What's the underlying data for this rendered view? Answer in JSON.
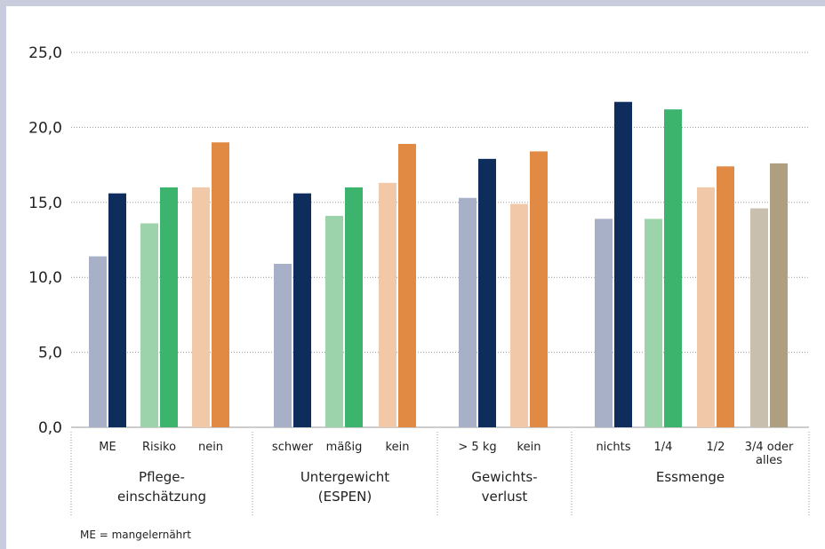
{
  "chart_data": {
    "type": "bar",
    "y_ticks": [
      "0,0",
      "5,0",
      "10,0",
      "15,0",
      "20,0",
      "25,0"
    ],
    "ylim": [
      0,
      25
    ],
    "grid": true,
    "groups": [
      {
        "label": [
          "Pflege-",
          "einschätzung"
        ],
        "categories": [
          {
            "label": [
              "ME"
            ],
            "values": [
              11.4,
              15.6
            ],
            "colors": [
              "#a8b0c8",
              "#0e2d5c"
            ]
          },
          {
            "label": [
              "Risiko"
            ],
            "values": [
              13.6,
              16.0
            ],
            "colors": [
              "#9dd3aa",
              "#3cb46e"
            ]
          },
          {
            "label": [
              "nein"
            ],
            "values": [
              16.0,
              19.0
            ],
            "colors": [
              "#f2c9a8",
              "#e08a44"
            ]
          }
        ]
      },
      {
        "label": [
          "Untergewicht",
          "(ESPEN)"
        ],
        "categories": [
          {
            "label": [
              "schwer"
            ],
            "values": [
              10.9,
              15.6
            ],
            "colors": [
              "#a8b0c8",
              "#0e2d5c"
            ]
          },
          {
            "label": [
              "mäßig"
            ],
            "values": [
              14.1,
              16.0
            ],
            "colors": [
              "#9dd3aa",
              "#3cb46e"
            ]
          },
          {
            "label": [
              "kein"
            ],
            "values": [
              16.3,
              18.9
            ],
            "colors": [
              "#f2c9a8",
              "#e08a44"
            ]
          }
        ]
      },
      {
        "label": [
          "Gewichts-",
          "verlust"
        ],
        "categories": [
          {
            "label": [
              "> 5 kg"
            ],
            "values": [
              15.3,
              17.9
            ],
            "colors": [
              "#a8b0c8",
              "#0e2d5c"
            ]
          },
          {
            "label": [
              "kein"
            ],
            "values": [
              14.9,
              18.4
            ],
            "colors": [
              "#f2c9a8",
              "#e08a44"
            ]
          }
        ]
      },
      {
        "label": [
          "Essmenge"
        ],
        "categories": [
          {
            "label": [
              "nichts"
            ],
            "values": [
              13.9,
              21.7
            ],
            "colors": [
              "#a8b0c8",
              "#0e2d5c"
            ]
          },
          {
            "label": [
              "1/4"
            ],
            "values": [
              13.9,
              21.2
            ],
            "colors": [
              "#9dd3aa",
              "#3cb46e"
            ]
          },
          {
            "label": [
              "1/2"
            ],
            "values": [
              16.0,
              17.4
            ],
            "colors": [
              "#f2c9a8",
              "#e08a44"
            ]
          },
          {
            "label": [
              "3/4 oder",
              "alles"
            ],
            "values": [
              14.6,
              17.6
            ],
            "colors": [
              "#c9bfae",
              "#ae9f80"
            ]
          }
        ]
      }
    ],
    "note": "ME = mangelernährt"
  }
}
